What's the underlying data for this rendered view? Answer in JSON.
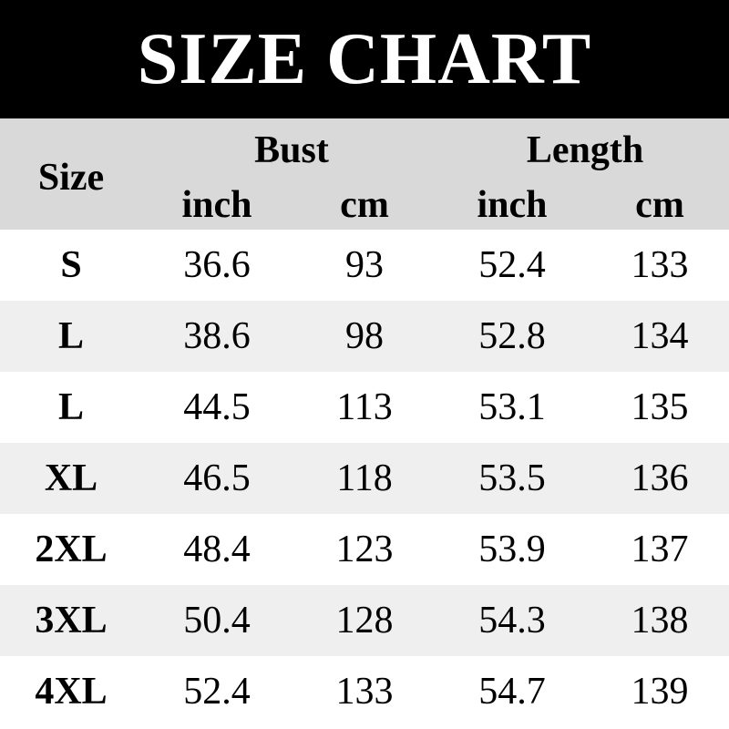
{
  "title": "SIZE CHART",
  "header": {
    "size": "Size",
    "bust": "Bust",
    "length": "Length",
    "units": [
      "inch",
      "cm",
      "inch",
      "cm"
    ]
  },
  "rows": [
    [
      "S",
      "36.6",
      "93",
      "52.4",
      "133"
    ],
    [
      "L",
      "38.6",
      "98",
      "52.8",
      "134"
    ],
    [
      "L",
      "44.5",
      "113",
      "53.1",
      "135"
    ],
    [
      "XL",
      "46.5",
      "118",
      "53.5",
      "136"
    ],
    [
      "2XL",
      "48.4",
      "123",
      "53.9",
      "137"
    ],
    [
      "3XL",
      "50.4",
      "128",
      "54.3",
      "138"
    ],
    [
      "4XL",
      "52.4",
      "133",
      "54.7",
      "139"
    ]
  ],
  "colors": {
    "title_bg": "#000000",
    "header_bg": "#d9d9d9",
    "alt_row_bg": "#efefef"
  }
}
